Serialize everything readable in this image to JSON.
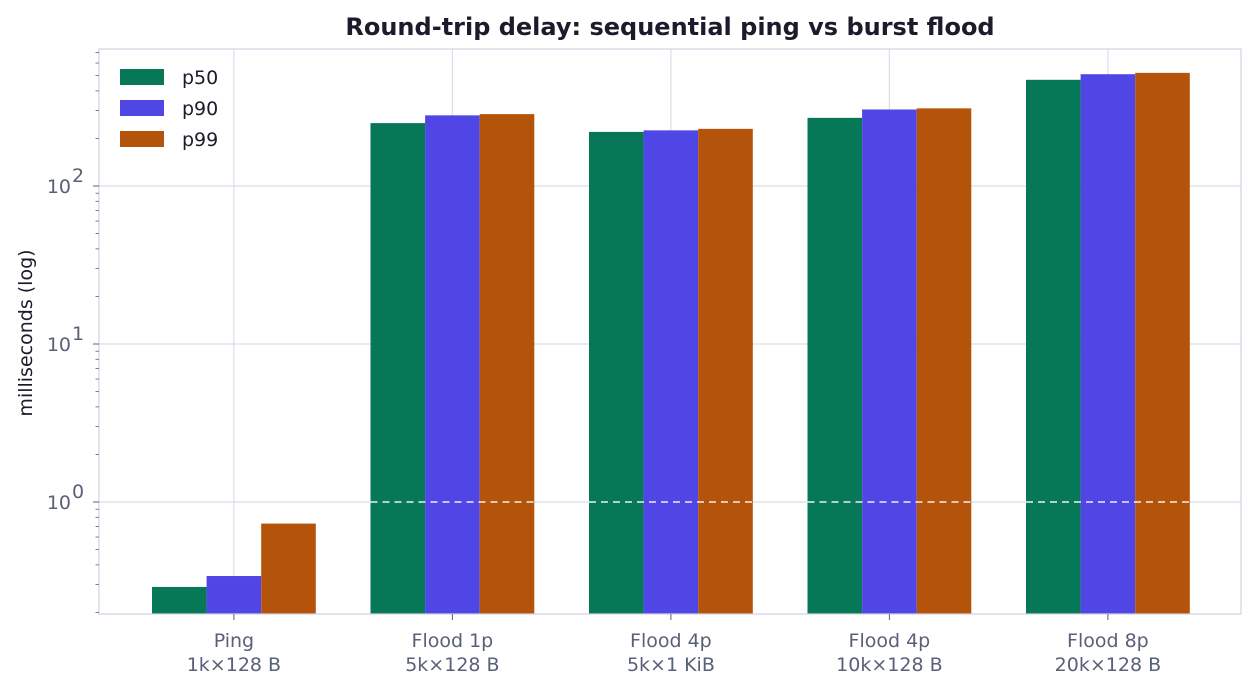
{
  "chart_data": {
    "type": "bar",
    "title": "Round-trip delay: sequential ping vs burst flood",
    "xlabel": "",
    "ylabel": "milliseconds (log)",
    "yscale": "log",
    "ylim": [
      0.19,
      800
    ],
    "yticks": [
      {
        "value": 1,
        "base": "10",
        "exp": "0"
      },
      {
        "value": 10,
        "base": "10",
        "exp": "1"
      },
      {
        "value": 100,
        "base": "10",
        "exp": "2"
      }
    ],
    "categories": [
      [
        "Ping",
        "1k×128 B"
      ],
      [
        "Flood 1p",
        "5k×128 B"
      ],
      [
        "Flood 4p",
        "5k×1 KiB"
      ],
      [
        "Flood 4p",
        "10k×128 B"
      ],
      [
        "Flood 8p",
        "20k×128 B"
      ]
    ],
    "series": [
      {
        "name": "p50",
        "color": "#067857",
        "values": [
          0.29,
          250,
          220,
          270,
          470
        ]
      },
      {
        "name": "p90",
        "color": "#4f46e5",
        "values": [
          0.34,
          280,
          225,
          305,
          510
        ]
      },
      {
        "name": "p99",
        "color": "#b4540a",
        "values": [
          0.73,
          285,
          230,
          310,
          520
        ]
      }
    ],
    "reference_line": {
      "value": 1,
      "style": "dashed",
      "color": "#ffffff"
    },
    "grid": true,
    "legend": "top-left"
  }
}
